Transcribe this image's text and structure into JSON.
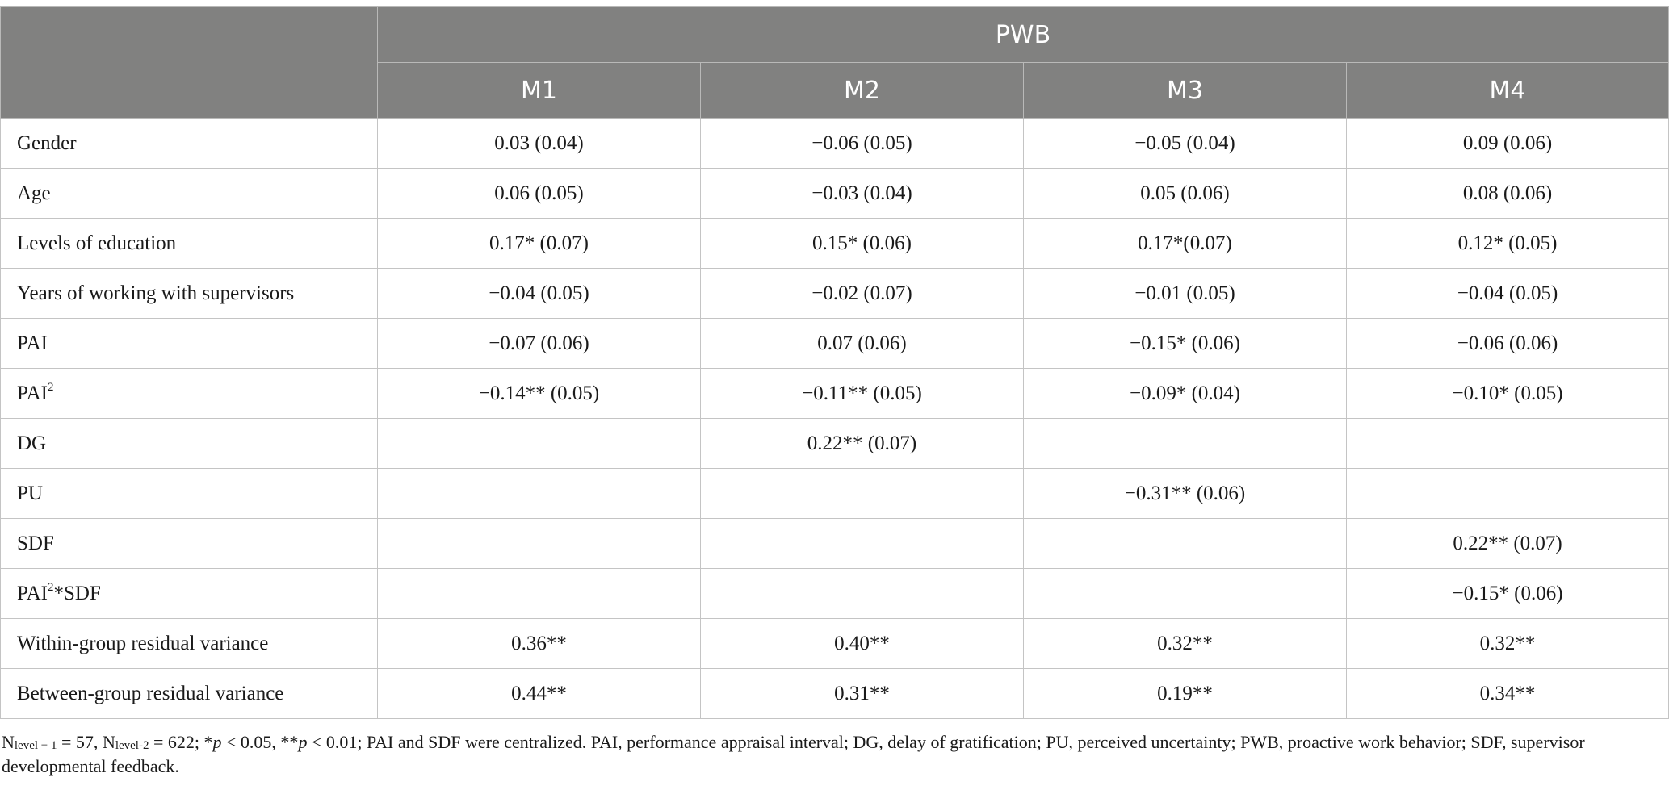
{
  "header": {
    "group_label": "PWB",
    "models": [
      "M1",
      "M2",
      "M3",
      "M4"
    ]
  },
  "rows": [
    {
      "label": "Gender",
      "label_sup": "",
      "label_suffix": "",
      "values": [
        "0.03 (0.04)",
        "−0.06 (0.05)",
        "−0.05 (0.04)",
        "0.09 (0.06)"
      ]
    },
    {
      "label": "Age",
      "label_sup": "",
      "label_suffix": "",
      "values": [
        "0.06 (0.05)",
        "−0.03 (0.04)",
        "0.05 (0.06)",
        "0.08 (0.06)"
      ]
    },
    {
      "label": "Levels of education",
      "label_sup": "",
      "label_suffix": "",
      "values": [
        "0.17* (0.07)",
        "0.15* (0.06)",
        "0.17*(0.07)",
        "0.12* (0.05)"
      ]
    },
    {
      "label": "Years of working with supervisors",
      "label_sup": "",
      "label_suffix": "",
      "values": [
        "−0.04 (0.05)",
        "−0.02 (0.07)",
        "−0.01 (0.05)",
        "−0.04 (0.05)"
      ]
    },
    {
      "label": "PAI",
      "label_sup": "",
      "label_suffix": "",
      "values": [
        "−0.07 (0.06)",
        "0.07 (0.06)",
        "−0.15* (0.06)",
        "−0.06 (0.06)"
      ]
    },
    {
      "label": "PAI",
      "label_sup": "2",
      "label_suffix": "",
      "values": [
        "−0.14** (0.05)",
        "−0.11** (0.05)",
        "−0.09* (0.04)",
        "−0.10* (0.05)"
      ]
    },
    {
      "label": "DG",
      "label_sup": "",
      "label_suffix": "",
      "values": [
        "",
        "0.22** (0.07)",
        "",
        ""
      ]
    },
    {
      "label": "PU",
      "label_sup": "",
      "label_suffix": "",
      "values": [
        "",
        "",
        "−0.31** (0.06)",
        ""
      ]
    },
    {
      "label": "SDF",
      "label_sup": "",
      "label_suffix": "",
      "values": [
        "",
        "",
        "",
        "0.22** (0.07)"
      ]
    },
    {
      "label": "PAI",
      "label_sup": "2",
      "label_suffix": "*SDF",
      "values": [
        "",
        "",
        "",
        "−0.15* (0.06)"
      ]
    },
    {
      "label": "Within-group residual variance",
      "label_sup": "",
      "label_suffix": "",
      "values": [
        "0.36**",
        "0.40**",
        "0.32**",
        "0.32**"
      ]
    },
    {
      "label": "Between-group residual variance",
      "label_sup": "",
      "label_suffix": "",
      "values": [
        "0.44**",
        "0.31**",
        "0.19**",
        "0.34**"
      ]
    }
  ],
  "note": {
    "n1": "N",
    "n1_sub": "level − 1",
    "n1_val": " = 57, ",
    "n2": "N",
    "n2_sub": "level-2",
    "n2_val": " = 622; *",
    "p1": "p",
    "p1_text": " < 0.05, **",
    "p2": "p",
    "rest": " < 0.01; PAI and SDF were centralized. PAI, performance appraisal interval; DG, delay of gratification; PU, perceived uncertainty; PWB, proactive work behavior; SDF, supervisor developmental feedback."
  }
}
